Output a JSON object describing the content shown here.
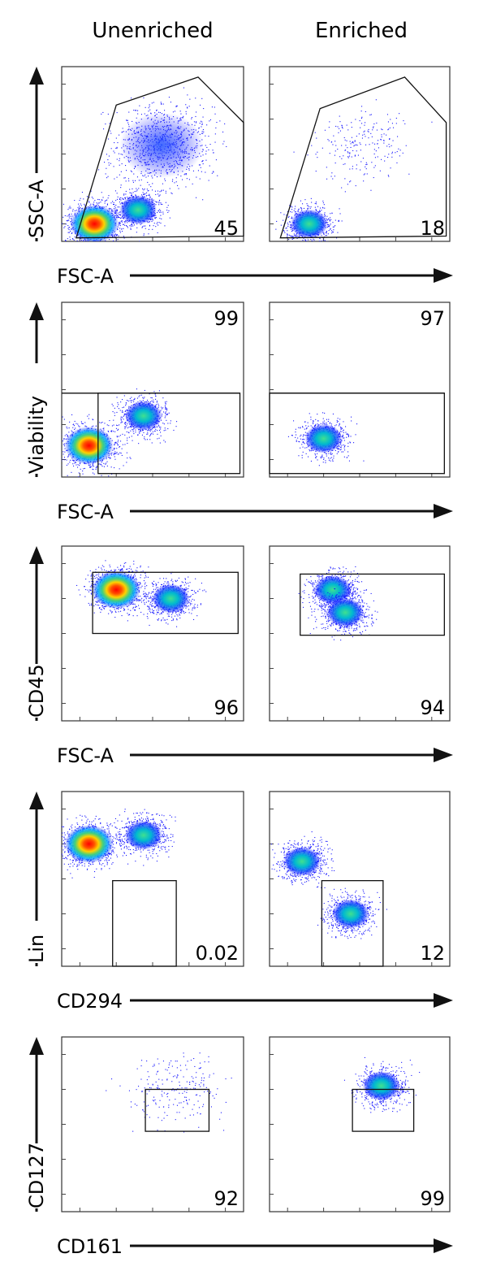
{
  "columns": [
    "Unenriched",
    "Enriched"
  ],
  "colors": {
    "axis": "#111111",
    "gate": "#111111",
    "density_low": "#0000ff",
    "density_mid": "#00c8c8",
    "density_high": "#ff0000"
  },
  "chart_data": [
    {
      "type": "scatter",
      "row": 1,
      "xlabel": "FSC-A",
      "ylabel": "SSC-A",
      "scale": "density",
      "panels": [
        {
          "column": "Unenriched",
          "gate_value": "45",
          "populations": [
            {
              "x": 0.18,
              "y": 0.1,
              "density": "high"
            },
            {
              "x": 0.42,
              "y": 0.18,
              "density": "mid"
            },
            {
              "x": 0.55,
              "y": 0.55,
              "density": "low"
            }
          ]
        },
        {
          "column": "Enriched",
          "gate_value": "18",
          "populations": [
            {
              "x": 0.22,
              "y": 0.1,
              "density": "mid"
            },
            {
              "x": 0.5,
              "y": 0.55,
              "density": "sparse"
            }
          ]
        }
      ]
    },
    {
      "type": "scatter",
      "row": 2,
      "xlabel": "FSC-A",
      "ylabel": "Viability",
      "scale": "density",
      "panels": [
        {
          "column": "Unenriched",
          "gate_value": "99",
          "populations": [
            {
              "x": 0.15,
              "y": 0.18,
              "density": "high"
            },
            {
              "x": 0.45,
              "y": 0.35,
              "density": "mid"
            }
          ]
        },
        {
          "column": "Enriched",
          "gate_value": "97",
          "populations": [
            {
              "x": 0.3,
              "y": 0.22,
              "density": "mid"
            }
          ]
        }
      ]
    },
    {
      "type": "scatter",
      "row": 3,
      "xlabel": "FSC-A",
      "ylabel": "CD45",
      "scale": "density",
      "panels": [
        {
          "column": "Unenriched",
          "gate_value": "96",
          "populations": [
            {
              "x": 0.3,
              "y": 0.75,
              "density": "high"
            },
            {
              "x": 0.6,
              "y": 0.7,
              "density": "mid"
            }
          ]
        },
        {
          "column": "Enriched",
          "gate_value": "94",
          "populations": [
            {
              "x": 0.35,
              "y": 0.75,
              "density": "mid"
            },
            {
              "x": 0.42,
              "y": 0.62,
              "density": "mid"
            }
          ]
        }
      ]
    },
    {
      "type": "scatter",
      "row": 4,
      "xlabel": "CD294",
      "ylabel": "Lin",
      "scale": "density",
      "panels": [
        {
          "column": "Unenriched",
          "gate_value": "0.02",
          "populations": [
            {
              "x": 0.15,
              "y": 0.7,
              "density": "high"
            },
            {
              "x": 0.45,
              "y": 0.75,
              "density": "mid"
            }
          ]
        },
        {
          "column": "Enriched",
          "gate_value": "12",
          "populations": [
            {
              "x": 0.18,
              "y": 0.6,
              "density": "mid"
            },
            {
              "x": 0.45,
              "y": 0.3,
              "density": "mid"
            }
          ]
        }
      ]
    },
    {
      "type": "scatter",
      "row": 5,
      "xlabel": "CD161",
      "ylabel": "CD127",
      "scale": "density",
      "panels": [
        {
          "column": "Unenriched",
          "gate_value": "92",
          "populations": [
            {
              "x": 0.62,
              "y": 0.72,
              "density": "sparse"
            }
          ]
        },
        {
          "column": "Enriched",
          "gate_value": "99",
          "populations": [
            {
              "x": 0.62,
              "y": 0.72,
              "density": "mid"
            }
          ]
        }
      ]
    }
  ]
}
